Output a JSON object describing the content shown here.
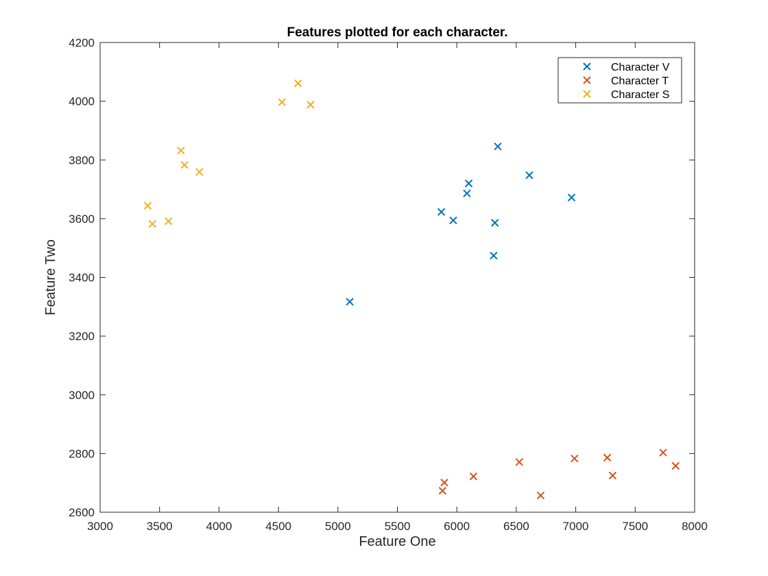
{
  "chart_data": {
    "type": "scatter",
    "title": "Features plotted for each character.",
    "xlabel": "Feature One",
    "ylabel": "Feature Two",
    "xlim": [
      3000,
      8000
    ],
    "ylim": [
      2600,
      4200
    ],
    "xticks": [
      3000,
      3500,
      4000,
      4500,
      5000,
      5500,
      6000,
      6500,
      7000,
      7500,
      8000
    ],
    "yticks": [
      2600,
      2800,
      3000,
      3200,
      3400,
      3600,
      3800,
      4000,
      4200
    ],
    "grid": false,
    "legend_position": "top-right",
    "marker": "x",
    "series": [
      {
        "name": "Character V",
        "color": "#0072BD",
        "points": [
          [
            5100,
            3317
          ],
          [
            5870,
            3623
          ],
          [
            5970,
            3594
          ],
          [
            6085,
            3686
          ],
          [
            6100,
            3720
          ],
          [
            6310,
            3474
          ],
          [
            6320,
            3586
          ],
          [
            6345,
            3846
          ],
          [
            6610,
            3748
          ],
          [
            6965,
            3672
          ]
        ]
      },
      {
        "name": "Character T",
        "color": "#D95319",
        "points": [
          [
            5880,
            2673
          ],
          [
            5895,
            2701
          ],
          [
            6140,
            2722
          ],
          [
            6525,
            2771
          ],
          [
            6705,
            2657
          ],
          [
            6990,
            2783
          ],
          [
            7265,
            2786
          ],
          [
            7310,
            2725
          ],
          [
            7735,
            2803
          ],
          [
            7840,
            2758
          ]
        ]
      },
      {
        "name": "Character S",
        "color": "#EDB120",
        "points": [
          [
            3400,
            3644
          ],
          [
            3440,
            3582
          ],
          [
            3575,
            3591
          ],
          [
            3680,
            3832
          ],
          [
            3710,
            3783
          ],
          [
            3835,
            3759
          ],
          [
            4530,
            3997
          ],
          [
            4665,
            4061
          ],
          [
            4770,
            3988
          ]
        ]
      }
    ]
  }
}
